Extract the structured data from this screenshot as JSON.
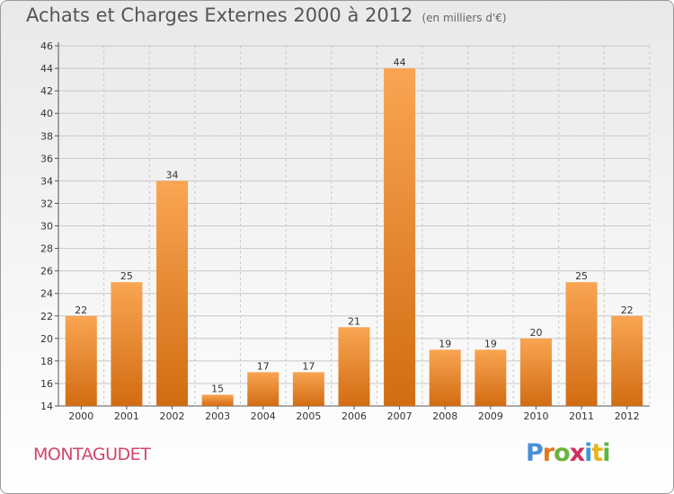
{
  "header": {
    "title": "Achats et Charges Externes 2000 à 2012",
    "subtitle": "(en milliers d'€)"
  },
  "footer": {
    "commune": "MONTAGUDET",
    "logo_text": "Proxiti"
  },
  "colors": {
    "bar_light": "#f9a552",
    "bar_dark": "#d26c12",
    "grid": "#c8c8c8",
    "title": "#555555",
    "commune": "#d1456a"
  },
  "chart_data": {
    "type": "bar",
    "title": "Achats et Charges Externes 2000 à 2012",
    "subtitle": "(en milliers d'€)",
    "xlabel": "",
    "ylabel": "",
    "categories": [
      "2000",
      "2001",
      "2002",
      "2003",
      "2004",
      "2005",
      "2006",
      "2007",
      "2008",
      "2009",
      "2010",
      "2011",
      "2012"
    ],
    "values": [
      22,
      25,
      34,
      15,
      17,
      17,
      21,
      44,
      19,
      19,
      20,
      25,
      22
    ],
    "ylim": [
      14,
      46
    ],
    "yticks": [
      14,
      16,
      18,
      20,
      22,
      24,
      26,
      28,
      30,
      32,
      34,
      36,
      38,
      40,
      42,
      44,
      46
    ],
    "grid": true,
    "legend": "none"
  }
}
